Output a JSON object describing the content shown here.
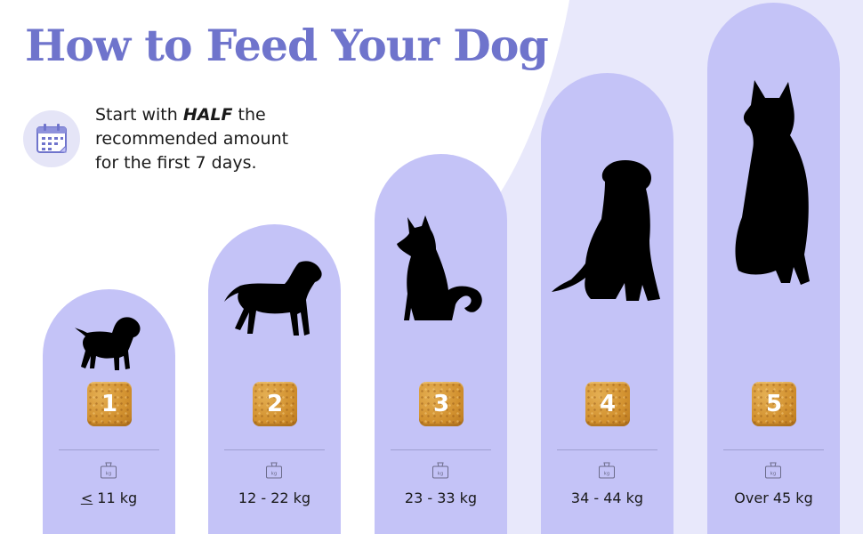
{
  "title": "How to Feed Your Dog",
  "instruction": {
    "line1_prefix": "Start with ",
    "line1_emphasis": "HALF",
    "line1_suffix": " the",
    "line2": "recommended amount",
    "line3": "for the first 7 days."
  },
  "icons": {
    "calendar": "calendar-icon",
    "scale": "scale-icon",
    "scale_label": "kg"
  },
  "tiers": [
    {
      "portion": "1",
      "weight_symbol": "<",
      "weight_text": " 11 kg",
      "dog": "puppy-silhouette"
    },
    {
      "portion": "2",
      "weight_text": "12 - 22 kg",
      "dog": "young-dog-silhouette"
    },
    {
      "portion": "3",
      "weight_text": "23 - 33 kg",
      "dog": "shiba-silhouette"
    },
    {
      "portion": "4",
      "weight_text": "34 - 44 kg",
      "dog": "retriever-silhouette"
    },
    {
      "portion": "5",
      "weight_text": "Over 45 kg",
      "dog": "shepherd-silhouette"
    }
  ],
  "colors": {
    "title": "#6f74cc",
    "pillar": "#c4c3f7",
    "background_curve": "#e8e8fb",
    "food_cube": "#d2912f",
    "text": "#1a1a1a"
  }
}
